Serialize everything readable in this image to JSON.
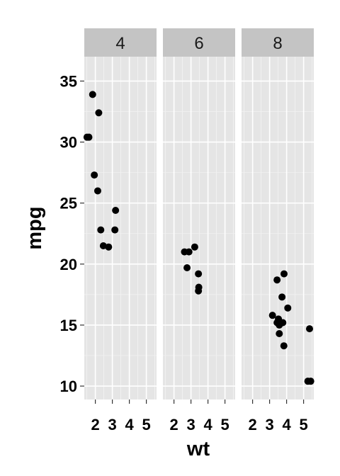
{
  "chart_data": {
    "type": "scatter",
    "facet_by": "cyl",
    "xlabel": "wt",
    "ylabel": "mpg",
    "xlim": [
      1.35,
      5.6
    ],
    "ylim": [
      8.9,
      37.0
    ],
    "x_ticks": [
      2,
      3,
      4,
      5
    ],
    "y_ticks": [
      10,
      15,
      20,
      25,
      30,
      35
    ],
    "grid": true,
    "point_color": "#000000",
    "panel_background": "#e5e5e5",
    "strip_background": "#c4c4c4",
    "panels": [
      {
        "label": "4",
        "points": [
          {
            "x": 2.32,
            "y": 22.8
          },
          {
            "x": 3.19,
            "y": 24.4
          },
          {
            "x": 3.15,
            "y": 22.8
          },
          {
            "x": 2.2,
            "y": 32.4
          },
          {
            "x": 1.62,
            "y": 30.4
          },
          {
            "x": 1.84,
            "y": 33.9
          },
          {
            "x": 2.47,
            "y": 21.5
          },
          {
            "x": 1.94,
            "y": 27.3
          },
          {
            "x": 2.14,
            "y": 26.0
          },
          {
            "x": 1.51,
            "y": 30.4
          },
          {
            "x": 2.78,
            "y": 21.4
          }
        ]
      },
      {
        "label": "6",
        "points": [
          {
            "x": 2.62,
            "y": 21.0
          },
          {
            "x": 2.88,
            "y": 21.0
          },
          {
            "x": 3.22,
            "y": 21.4
          },
          {
            "x": 3.46,
            "y": 18.1
          },
          {
            "x": 3.44,
            "y": 19.2
          },
          {
            "x": 3.44,
            "y": 17.8
          },
          {
            "x": 2.77,
            "y": 19.7
          }
        ]
      },
      {
        "label": "8",
        "points": [
          {
            "x": 3.44,
            "y": 18.7
          },
          {
            "x": 3.57,
            "y": 14.3
          },
          {
            "x": 4.07,
            "y": 16.4
          },
          {
            "x": 3.73,
            "y": 17.3
          },
          {
            "x": 3.78,
            "y": 15.2
          },
          {
            "x": 5.25,
            "y": 10.4
          },
          {
            "x": 5.42,
            "y": 10.4
          },
          {
            "x": 5.35,
            "y": 14.7
          },
          {
            "x": 3.52,
            "y": 15.5
          },
          {
            "x": 3.44,
            "y": 15.2
          },
          {
            "x": 3.84,
            "y": 13.3
          },
          {
            "x": 3.85,
            "y": 19.2
          },
          {
            "x": 3.17,
            "y": 15.8
          },
          {
            "x": 3.57,
            "y": 15.0
          }
        ]
      }
    ]
  }
}
